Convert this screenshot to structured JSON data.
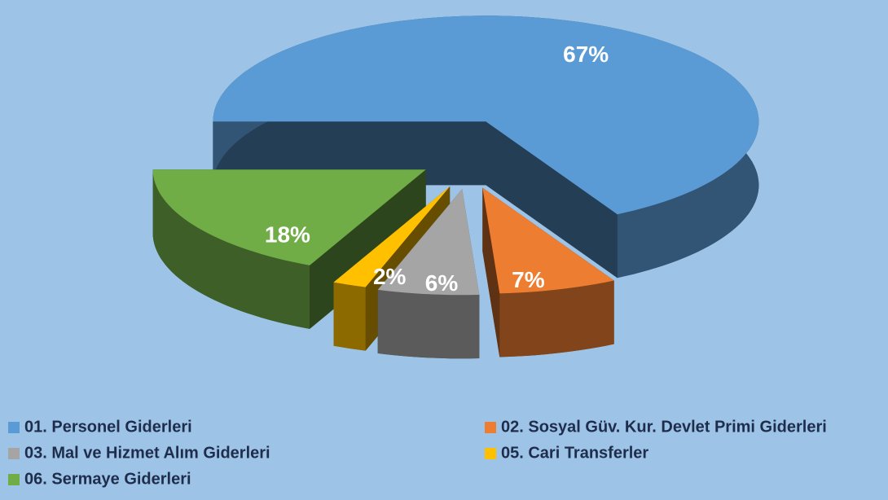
{
  "chart_data": {
    "type": "pie",
    "categories": [
      "01. Personel Giderleri",
      "02. Sosyal Güv. Kur. Devlet Primi Giderleri",
      "03. Mal ve Hizmet Alım Giderleri",
      "05. Cari Transferler",
      "06. Sermaye Giderleri"
    ],
    "values": [
      67,
      7,
      6,
      2,
      18
    ],
    "value_labels": [
      "67%",
      "7%",
      "6%",
      "2%",
      "18%"
    ],
    "colors": [
      "#5b9bd5",
      "#ed7d31",
      "#a5a5a5",
      "#ffc000",
      "#70ad47"
    ],
    "legend": "bottom"
  }
}
